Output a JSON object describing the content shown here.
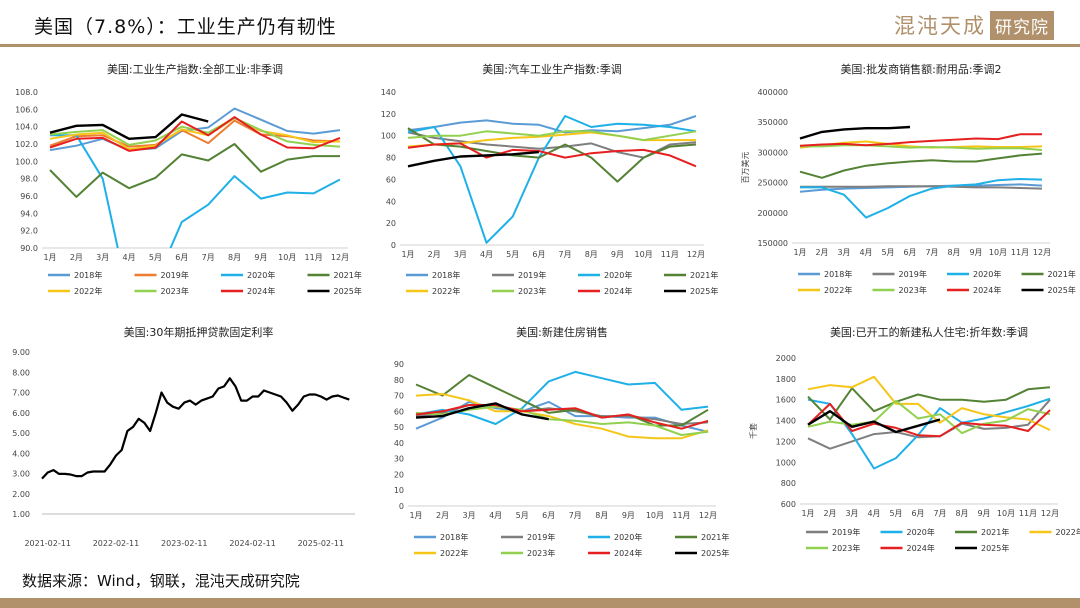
{
  "header": {
    "title": "美国（7.8%）：工业生产仍有韧性",
    "brand_text": "混沌天成",
    "brand_box": "研究院"
  },
  "source": "数据来源：Wind，钢联，混沌天成研究院",
  "months": [
    "1月",
    "2月",
    "3月",
    "4月",
    "5月",
    "6月",
    "7月",
    "8月",
    "9月",
    "10月",
    "11月",
    "12月"
  ],
  "colors": {
    "2018": "#5b9bd5",
    "2019": "#ed7d31",
    "2020": "#1fb0e8",
    "2021": "#548235",
    "2022": "#f5c518",
    "2023": "#92d050",
    "2024": "#e62020",
    "2025": "#000000",
    "2019b": "#7f7f7f",
    "brand": "#b0916b"
  },
  "chart_data": [
    {
      "id": "ip",
      "type": "line",
      "title": "美国:工业生产指数:全部工业:非季调",
      "ylim": [
        90,
        108
      ],
      "yticks": [
        "90.0",
        "92.0",
        "94.0",
        "96.0",
        "98.0",
        "100.0",
        "102.0",
        "104.0",
        "106.0",
        "108.0"
      ],
      "series": [
        {
          "name": "2018年",
          "color": "#5b9bd5",
          "values": [
            101.3,
            101.8,
            102.6,
            101.3,
            101.5,
            103.5,
            103.9,
            106.1,
            104.8,
            103.5,
            103.2,
            103.6
          ]
        },
        {
          "name": "2019年",
          "color": "#ed7d31",
          "values": [
            101.8,
            102.9,
            103.0,
            101.7,
            101.9,
            103.6,
            102.1,
            104.7,
            103.1,
            102.9,
            102.4,
            102.3
          ]
        },
        {
          "name": "2020年",
          "color": "#1fb0e8",
          "values": [
            103.0,
            103.0,
            98.0,
            84.0,
            86.0,
            93.0,
            95.0,
            98.3,
            95.7,
            96.4,
            96.3,
            97.9
          ]
        },
        {
          "name": "2021年",
          "color": "#548235",
          "values": [
            99.0,
            95.9,
            98.7,
            96.9,
            98.1,
            100.8,
            100.1,
            102.0,
            98.8,
            100.2,
            100.6,
            100.6
          ]
        },
        {
          "name": "2022年",
          "color": "#f5c518",
          "values": [
            102.6,
            103.1,
            103.3,
            101.4,
            101.8,
            103.7,
            103.0,
            105.0,
            103.5,
            103.0,
            102.2,
            102.3
          ]
        },
        {
          "name": "2023年",
          "color": "#92d050",
          "values": [
            103.1,
            103.4,
            103.6,
            101.9,
            102.4,
            104.0,
            103.3,
            105.0,
            103.6,
            102.3,
            101.9,
            101.7
          ]
        },
        {
          "name": "2024年",
          "color": "#e62020",
          "values": [
            101.6,
            102.6,
            102.7,
            101.2,
            101.6,
            104.6,
            103.0,
            105.1,
            103.1,
            101.6,
            101.5,
            102.7
          ]
        },
        {
          "name": "2025年",
          "color": "#000000",
          "values": [
            103.3,
            104.1,
            104.2,
            102.6,
            102.8,
            105.4,
            104.6
          ]
        }
      ]
    },
    {
      "id": "auto",
      "type": "line",
      "title": "美国:汽车工业生产指数:季调",
      "ylim": [
        0,
        140
      ],
      "yticks": [
        "0",
        "20",
        "40",
        "60",
        "80",
        "100",
        "120",
        "140"
      ],
      "series": [
        {
          "name": "2018年",
          "color": "#5b9bd5",
          "values": [
            105,
            108,
            112,
            114,
            111,
            110,
            103,
            105,
            104,
            107,
            110,
            118
          ]
        },
        {
          "name": "2019年",
          "color": "#7f7f7f",
          "values": [
            103,
            98,
            95,
            92,
            90,
            88,
            90,
            93,
            85,
            80,
            92,
            94
          ]
        },
        {
          "name": "2020年",
          "color": "#1fb0e8",
          "values": [
            103,
            108,
            72,
            2,
            26,
            80,
            118,
            108,
            111,
            110,
            108,
            104
          ]
        },
        {
          "name": "2021年",
          "color": "#548235",
          "values": [
            107,
            92,
            90,
            86,
            82,
            80,
            92,
            80,
            58,
            80,
            90,
            92
          ]
        },
        {
          "name": "2022年",
          "color": "#f5c518",
          "values": [
            90,
            92,
            93,
            96,
            98,
            99,
            101,
            103,
            100,
            96,
            96,
            96
          ]
        },
        {
          "name": "2023年",
          "color": "#92d050",
          "values": [
            98,
            100,
            100,
            104,
            102,
            100,
            104,
            104,
            100,
            96,
            100,
            104
          ]
        },
        {
          "name": "2024年",
          "color": "#e62020",
          "values": [
            89,
            92,
            93,
            80,
            87,
            86,
            80,
            84,
            86,
            87,
            82,
            72
          ]
        },
        {
          "name": "2025年",
          "color": "#000000",
          "values": [
            72,
            77,
            81,
            82,
            83,
            85
          ]
        }
      ]
    },
    {
      "id": "wholesale",
      "type": "line",
      "title": "美国:批发商销售额:耐用品:季调2",
      "ylabel": "百万美元",
      "ylim": [
        150000,
        400000
      ],
      "yticks": [
        "150000",
        "200000",
        "250000",
        "300000",
        "350000",
        "400000"
      ],
      "series": [
        {
          "name": "2018年",
          "color": "#5b9bd5",
          "values": [
            235000,
            238000,
            240000,
            241000,
            242000,
            243000,
            244000,
            245000,
            245000,
            246000,
            247000,
            245000
          ]
        },
        {
          "name": "2019年",
          "color": "#7f7f7f",
          "values": [
            243000,
            243000,
            243000,
            243000,
            244000,
            244000,
            244000,
            243000,
            242000,
            242000,
            241000,
            240000
          ]
        },
        {
          "name": "2020年",
          "color": "#1fb0e8",
          "values": [
            242000,
            242000,
            230000,
            192000,
            208000,
            228000,
            240000,
            245000,
            247000,
            254000,
            256000,
            255000
          ]
        },
        {
          "name": "2021年",
          "color": "#548235",
          "values": [
            268000,
            258000,
            270000,
            278000,
            282000,
            285000,
            287000,
            285000,
            285000,
            290000,
            295000,
            298000
          ]
        },
        {
          "name": "2022年",
          "color": "#f5c518",
          "values": [
            308000,
            312000,
            316000,
            318000,
            314000,
            310000,
            308000,
            309000,
            310000,
            309000,
            309000,
            310000
          ]
        },
        {
          "name": "2023年",
          "color": "#92d050",
          "values": [
            310000,
            310000,
            312000,
            312000,
            310000,
            308000,
            309000,
            308000,
            306000,
            307000,
            307000,
            304000
          ]
        },
        {
          "name": "2024年",
          "color": "#e62020",
          "values": [
            311000,
            313000,
            314000,
            312000,
            314000,
            317000,
            319000,
            321000,
            323000,
            322000,
            330000,
            330000
          ]
        },
        {
          "name": "2025年",
          "color": "#000000",
          "values": [
            323000,
            334000,
            338000,
            340000,
            340000,
            342000
          ]
        }
      ]
    },
    {
      "id": "mortgage",
      "type": "line",
      "title": "美国:30年期抵押贷款固定利率",
      "ylim": [
        1.0,
        9.0
      ],
      "yticks": [
        "1.00",
        "2.00",
        "3.00",
        "4.00",
        "5.00",
        "6.00",
        "7.00",
        "8.00",
        "9.00"
      ],
      "xticks": [
        "2021-02-11",
        "2022-02-11",
        "2023-02-11",
        "2024-02-11",
        "2025-02-11"
      ],
      "x": [
        "2021-01",
        "2021-02",
        "2021-03",
        "2021-04",
        "2021-05",
        "2021-06",
        "2021-07",
        "2021-08",
        "2021-09",
        "2021-10",
        "2021-11",
        "2021-12",
        "2022-01",
        "2022-02",
        "2022-03",
        "2022-04",
        "2022-05",
        "2022-06",
        "2022-07",
        "2022-08",
        "2022-09",
        "2022-10",
        "2022-11",
        "2022-12",
        "2023-01",
        "2023-02",
        "2023-03",
        "2023-04",
        "2023-05",
        "2023-06",
        "2023-07",
        "2023-08",
        "2023-09",
        "2023-10",
        "2023-11",
        "2023-12",
        "2024-01",
        "2024-02",
        "2024-03",
        "2024-04",
        "2024-05",
        "2024-06",
        "2024-07",
        "2024-08",
        "2024-09",
        "2024-10",
        "2024-11",
        "2024-12",
        "2025-01",
        "2025-02",
        "2025-03",
        "2025-04",
        "2025-05",
        "2025-06",
        "2025-07"
      ],
      "values": [
        2.75,
        3.05,
        3.17,
        2.98,
        2.98,
        2.95,
        2.87,
        2.87,
        3.05,
        3.1,
        3.1,
        3.1,
        3.45,
        3.89,
        4.16,
        5.1,
        5.3,
        5.7,
        5.5,
        5.1,
        6.0,
        7.0,
        6.5,
        6.3,
        6.2,
        6.5,
        6.6,
        6.4,
        6.6,
        6.7,
        6.8,
        7.2,
        7.3,
        7.7,
        7.3,
        6.6,
        6.6,
        6.8,
        6.8,
        7.1,
        7.0,
        6.9,
        6.8,
        6.5,
        6.1,
        6.4,
        6.8,
        6.9,
        6.9,
        6.8,
        6.65,
        6.8,
        6.85,
        6.75,
        6.65
      ]
    },
    {
      "id": "newhome",
      "type": "line",
      "title": "美国:新建住房销售",
      "ylim": [
        0,
        90
      ],
      "yticks": [
        "0",
        "10",
        "20",
        "30",
        "40",
        "50",
        "60",
        "70",
        "80",
        "90"
      ],
      "series": [
        {
          "name": "2018年",
          "color": "#5b9bd5",
          "values": [
            49,
            56,
            66,
            62,
            60,
            66,
            57,
            57,
            56,
            56,
            51,
            47
          ]
        },
        {
          "name": "2019年",
          "color": "#7f7f7f",
          "values": [
            57,
            59,
            64,
            64,
            60,
            62,
            60,
            57,
            57,
            55,
            52,
            53
          ]
        },
        {
          "name": "2020年",
          "color": "#1fb0e8",
          "values": [
            58,
            61,
            58,
            52,
            62,
            79,
            85,
            81,
            77,
            78,
            61,
            63
          ]
        },
        {
          "name": "2021年",
          "color": "#548235",
          "values": [
            77,
            70,
            83,
            75,
            67,
            59,
            61,
            56,
            58,
            51,
            51,
            61
          ]
        },
        {
          "name": "2022年",
          "color": "#f5c518",
          "values": [
            70,
            71,
            67,
            60,
            60,
            57,
            52,
            49,
            44,
            43,
            43,
            48
          ]
        },
        {
          "name": "2023年",
          "color": "#92d050",
          "values": [
            59,
            58,
            61,
            63,
            61,
            55,
            54,
            52,
            53,
            51,
            45,
            47
          ]
        },
        {
          "name": "2024年",
          "color": "#e62020",
          "values": [
            58,
            60,
            64,
            64,
            60,
            61,
            62,
            56,
            58,
            53,
            49,
            54
          ]
        },
        {
          "name": "2025年",
          "color": "#000000",
          "values": [
            56,
            57,
            62,
            65,
            58,
            55
          ]
        }
      ]
    },
    {
      "id": "starts",
      "type": "line",
      "title": "美国:已开工的新建私人住宅:折年数:季调",
      "ylabel": "千套",
      "ylim": [
        600,
        2000
      ],
      "yticks": [
        "600",
        "800",
        "1000",
        "1200",
        "1400",
        "1600",
        "1800",
        "2000"
      ],
      "series": [
        {
          "name": "2019年",
          "color": "#7f7f7f",
          "values": [
            1230,
            1130,
            1200,
            1270,
            1290,
            1240,
            1250,
            1370,
            1320,
            1330,
            1360,
            1600
          ]
        },
        {
          "name": "2020年",
          "color": "#1fb0e8",
          "values": [
            1600,
            1560,
            1270,
            940,
            1040,
            1260,
            1520,
            1380,
            1420,
            1480,
            1540,
            1610
          ]
        },
        {
          "name": "2021年",
          "color": "#548235",
          "values": [
            1630,
            1410,
            1710,
            1490,
            1580,
            1650,
            1600,
            1600,
            1580,
            1600,
            1700,
            1720
          ]
        },
        {
          "name": "2022年",
          "color": "#f5c518",
          "values": [
            1700,
            1740,
            1720,
            1820,
            1560,
            1560,
            1380,
            1520,
            1460,
            1430,
            1410,
            1310
          ]
        },
        {
          "name": "2023年",
          "color": "#92d050",
          "values": [
            1340,
            1390,
            1360,
            1390,
            1590,
            1420,
            1460,
            1280,
            1370,
            1400,
            1510,
            1460
          ]
        },
        {
          "name": "2024年",
          "color": "#e62020",
          "values": [
            1360,
            1560,
            1300,
            1370,
            1330,
            1260,
            1250,
            1380,
            1360,
            1350,
            1300,
            1500
          ]
        },
        {
          "name": "2025年",
          "color": "#000000",
          "values": [
            1360,
            1490,
            1340,
            1390,
            1290,
            1350,
            1410
          ]
        }
      ]
    }
  ]
}
